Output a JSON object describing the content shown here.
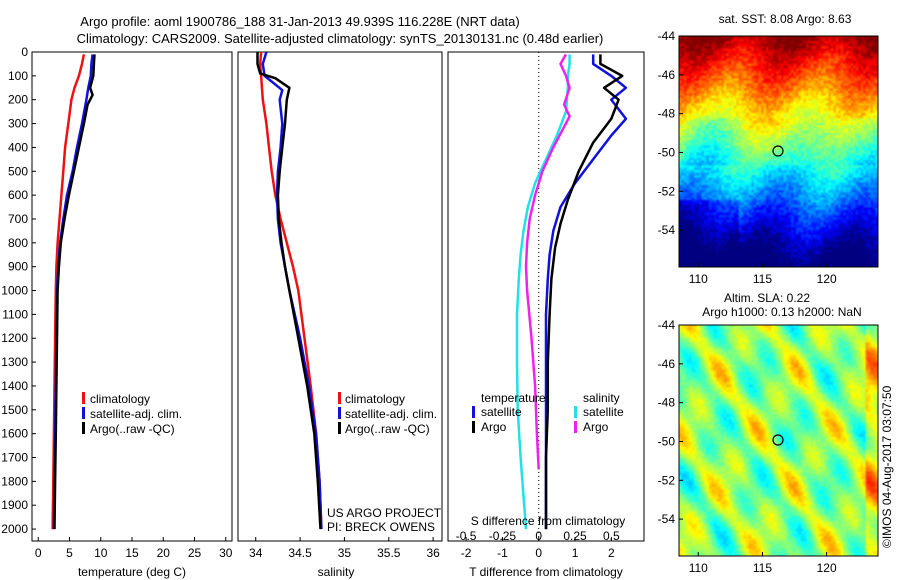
{
  "header": {
    "line1": "Argo profile: aoml 1900786_188 31-Jan-2013 49.939S 116.228E (NRT data)",
    "line2": "Climatology: CARS2009. Satellite-adjusted climatology: synTS_20130131.nc (0.48d earlier)"
  },
  "colors": {
    "climatology": "#ee1111",
    "satellite": "#1111dd",
    "argo": "#000000",
    "sal_sat": "#22e0e8",
    "sal_argo": "#ee22ee"
  },
  "chart_data": [
    {
      "type": "line",
      "xlabel": "temperature (deg C)",
      "xlim": [
        -1,
        31
      ],
      "xticks": [
        "0",
        "5",
        "10",
        "15",
        "20",
        "25",
        "30"
      ],
      "ylim": [
        2050,
        0
      ],
      "yticks": [
        "0",
        "100",
        "200",
        "300",
        "400",
        "500",
        "600",
        "700",
        "800",
        "900",
        "1000",
        "1100",
        "1200",
        "1300",
        "1400",
        "1500",
        "1600",
        "1700",
        "1800",
        "1900",
        "2000"
      ],
      "legend": [
        "climatology",
        "satellite-adj. clim.",
        "Argo(..raw -QC)"
      ],
      "series": [
        {
          "name": "climatology",
          "points": [
            [
              7.3,
              10
            ],
            [
              7.0,
              50
            ],
            [
              6.5,
              100
            ],
            [
              5.8,
              150
            ],
            [
              5.3,
              200
            ],
            [
              4.8,
              300
            ],
            [
              4.3,
              400
            ],
            [
              4.0,
              500
            ],
            [
              3.7,
              600
            ],
            [
              3.4,
              700
            ],
            [
              3.1,
              800
            ],
            [
              2.9,
              900
            ],
            [
              2.8,
              1000
            ],
            [
              2.7,
              1200
            ],
            [
              2.6,
              1400
            ],
            [
              2.5,
              1600
            ],
            [
              2.4,
              1800
            ],
            [
              2.3,
              2000
            ]
          ]
        },
        {
          "name": "satellite-adj. clim.",
          "points": [
            [
              8.7,
              10
            ],
            [
              8.5,
              50
            ],
            [
              8.4,
              100
            ],
            [
              8.0,
              150
            ],
            [
              7.7,
              200
            ],
            [
              7.0,
              300
            ],
            [
              6.2,
              400
            ],
            [
              5.5,
              500
            ],
            [
              4.6,
              600
            ],
            [
              4.0,
              700
            ],
            [
              3.5,
              800
            ],
            [
              3.2,
              900
            ],
            [
              3.0,
              1000
            ],
            [
              2.9,
              1200
            ],
            [
              2.8,
              1400
            ],
            [
              2.7,
              1600
            ],
            [
              2.6,
              1800
            ],
            [
              2.5,
              2000
            ]
          ]
        },
        {
          "name": "Argo(..raw -QC)",
          "points": [
            [
              9.0,
              10
            ],
            [
              8.9,
              50
            ],
            [
              8.8,
              100
            ],
            [
              8.3,
              150
            ],
            [
              8.7,
              180
            ],
            [
              7.9,
              220
            ],
            [
              7.3,
              300
            ],
            [
              6.5,
              400
            ],
            [
              5.7,
              500
            ],
            [
              4.9,
              600
            ],
            [
              4.2,
              700
            ],
            [
              3.6,
              800
            ],
            [
              3.3,
              900
            ],
            [
              3.1,
              1000
            ],
            [
              3.0,
              1200
            ],
            [
              2.9,
              1400
            ],
            [
              2.8,
              1600
            ],
            [
              2.7,
              1800
            ],
            [
              2.6,
              2000
            ]
          ]
        }
      ]
    },
    {
      "type": "line",
      "xlabel": "salinity",
      "xlim": [
        33.8,
        36.1
      ],
      "xticks": [
        "34",
        "34.5",
        "35",
        "35.5",
        "36"
      ],
      "ylim": [
        2050,
        0
      ],
      "legend": [
        "climatology",
        "satellite-adj. clim.",
        "Argo(..raw -QC)"
      ],
      "annotation": [
        "US ARGO PROJECT",
        "PI: BRECK OWENS"
      ],
      "series": [
        {
          "name": "climatology",
          "points": [
            [
              34.06,
              0
            ],
            [
              34.05,
              50
            ],
            [
              34.06,
              100
            ],
            [
              34.08,
              200
            ],
            [
              34.12,
              300
            ],
            [
              34.15,
              400
            ],
            [
              34.18,
              500
            ],
            [
              34.22,
              600
            ],
            [
              34.28,
              700
            ],
            [
              34.35,
              800
            ],
            [
              34.42,
              900
            ],
            [
              34.48,
              1000
            ],
            [
              34.55,
              1200
            ],
            [
              34.62,
              1400
            ],
            [
              34.68,
              1600
            ],
            [
              34.72,
              1800
            ],
            [
              34.74,
              2000
            ]
          ]
        },
        {
          "name": "satellite-adj. clim.",
          "points": [
            [
              34.12,
              0
            ],
            [
              34.08,
              50
            ],
            [
              34.1,
              100
            ],
            [
              34.2,
              130
            ],
            [
              34.3,
              160
            ],
            [
              34.27,
              200
            ],
            [
              34.3,
              300
            ],
            [
              34.28,
              400
            ],
            [
              34.25,
              500
            ],
            [
              34.24,
              600
            ],
            [
              34.25,
              700
            ],
            [
              34.28,
              800
            ],
            [
              34.33,
              900
            ],
            [
              34.38,
              1000
            ],
            [
              34.5,
              1200
            ],
            [
              34.6,
              1400
            ],
            [
              34.68,
              1600
            ],
            [
              34.72,
              1800
            ],
            [
              34.74,
              2000
            ]
          ]
        },
        {
          "name": "Argo(..raw -QC)",
          "points": [
            [
              34.02,
              0
            ],
            [
              34.02,
              50
            ],
            [
              34.05,
              90
            ],
            [
              34.22,
              110
            ],
            [
              34.38,
              150
            ],
            [
              34.35,
              200
            ],
            [
              34.33,
              300
            ],
            [
              34.3,
              400
            ],
            [
              34.27,
              500
            ],
            [
              34.25,
              600
            ],
            [
              34.26,
              700
            ],
            [
              34.29,
              800
            ],
            [
              34.33,
              900
            ],
            [
              34.38,
              1000
            ],
            [
              34.48,
              1200
            ],
            [
              34.58,
              1400
            ],
            [
              34.66,
              1600
            ],
            [
              34.7,
              1800
            ],
            [
              34.73,
              2000
            ]
          ]
        }
      ]
    },
    {
      "type": "line",
      "xlabel": "T difference from climatology",
      "xlabel_top": "S difference from climatology",
      "xlim": [
        -2.5,
        2.9
      ],
      "xticks": [
        "-2",
        "-1",
        "0",
        "1",
        "2"
      ],
      "xticks_top": [
        "-0.5",
        "-0.25",
        "0",
        "0.25",
        "0.5"
      ],
      "ylim": [
        2050,
        0
      ],
      "legend_title_t": "temperature",
      "legend_title_s": "salinity",
      "legend": [
        "satellite",
        "Argo",
        "satellite",
        "Argo"
      ],
      "series": [
        {
          "name": "satellite",
          "points": [
            [
              1.5,
              10
            ],
            [
              1.5,
              50
            ],
            [
              2.0,
              100
            ],
            [
              2.4,
              150
            ],
            [
              2.0,
              200
            ],
            [
              2.4,
              280
            ],
            [
              2.0,
              350
            ],
            [
              1.5,
              450
            ],
            [
              1.0,
              550
            ],
            [
              0.6,
              650
            ],
            [
              0.4,
              750
            ],
            [
              0.3,
              850
            ],
            [
              0.25,
              950
            ],
            [
              0.2,
              1100
            ],
            [
              0.2,
              1300
            ],
            [
              0.2,
              1500
            ],
            [
              0.2,
              1700
            ],
            [
              0.2,
              1900
            ],
            [
              0.2,
              2000
            ]
          ]
        },
        {
          "name": "Argo",
          "points": [
            [
              1.7,
              10
            ],
            [
              1.7,
              50
            ],
            [
              2.3,
              100
            ],
            [
              1.8,
              150
            ],
            [
              2.2,
              200
            ],
            [
              2.0,
              280
            ],
            [
              1.5,
              380
            ],
            [
              1.1,
              500
            ],
            [
              0.8,
              620
            ],
            [
              0.6,
              720
            ],
            [
              0.45,
              820
            ],
            [
              0.35,
              950
            ],
            [
              0.3,
              1100
            ],
            [
              0.25,
              1300
            ],
            [
              0.25,
              1500
            ],
            [
              0.2,
              1700
            ],
            [
              0.2,
              1900
            ],
            [
              0.2,
              2000
            ]
          ]
        },
        {
          "name": "satellite",
          "points": [
            [
              0.85,
              10
            ],
            [
              0.85,
              50
            ],
            [
              0.8,
              100
            ],
            [
              0.8,
              150
            ],
            [
              0.75,
              250
            ],
            [
              0.5,
              350
            ],
            [
              0.2,
              450
            ],
            [
              -0.1,
              550
            ],
            [
              -0.3,
              650
            ],
            [
              -0.42,
              750
            ],
            [
              -0.5,
              850
            ],
            [
              -0.55,
              950
            ],
            [
              -0.6,
              1100
            ],
            [
              -0.6,
              1300
            ],
            [
              -0.58,
              1500
            ],
            [
              -0.5,
              1700
            ],
            [
              -0.4,
              1900
            ],
            [
              -0.35,
              2000
            ]
          ]
        },
        {
          "name": "Argo",
          "points": [
            [
              0.75,
              10
            ],
            [
              0.6,
              50
            ],
            [
              0.75,
              100
            ],
            [
              0.85,
              150
            ],
            [
              0.7,
              220
            ],
            [
              0.85,
              270
            ],
            [
              0.4,
              400
            ],
            [
              0.1,
              500
            ],
            [
              -0.1,
              600
            ],
            [
              -0.25,
              700
            ],
            [
              -0.32,
              800
            ],
            [
              -0.35,
              900
            ],
            [
              -0.32,
              1000
            ],
            [
              -0.2,
              1200
            ],
            [
              -0.1,
              1400
            ],
            [
              -0.05,
              1600
            ],
            [
              0.0,
              1750
            ]
          ]
        }
      ]
    },
    {
      "type": "heatmap",
      "title": "sat. SST: 8.08 Argo: 8.63",
      "xticks": [
        "110",
        "115",
        "120"
      ],
      "yticks": [
        "-44",
        "-46",
        "-48",
        "-50",
        "-52",
        "-54"
      ],
      "marker": [
        116.2,
        -49.9
      ]
    },
    {
      "type": "heatmap",
      "title": "Altim. SLA: 0.22",
      "subtitle": "Argo h1000: 0.13 h2000: NaN",
      "xticks": [
        "110",
        "115",
        "120"
      ],
      "yticks": [
        "-44",
        "-46",
        "-48",
        "-50",
        "-52",
        "-54"
      ],
      "marker": [
        116.2,
        -49.9
      ]
    }
  ],
  "credit": "©IMOS 04-Aug-2017 03:07:50"
}
